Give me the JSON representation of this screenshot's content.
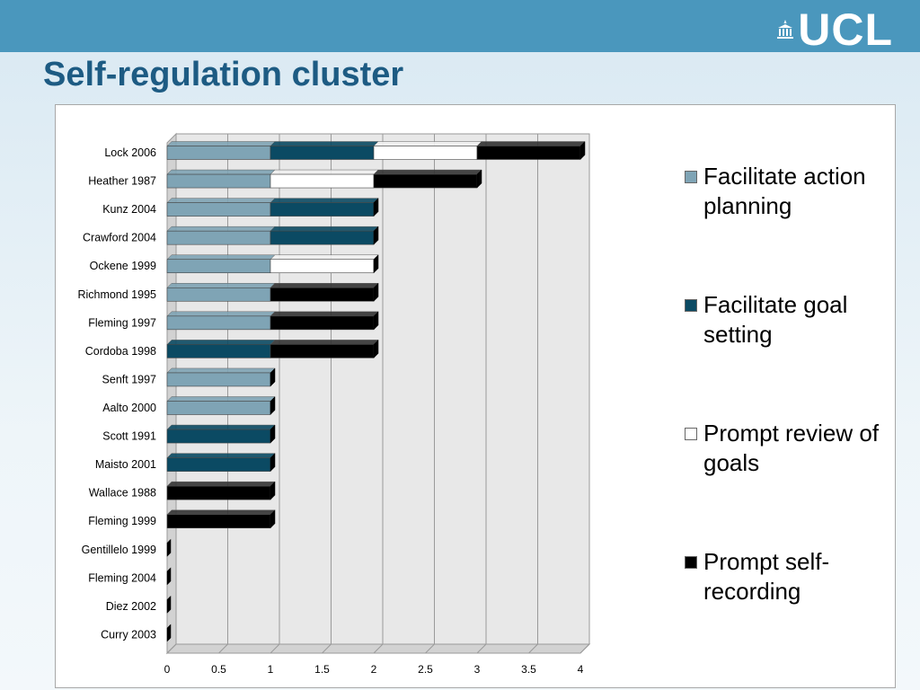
{
  "slide": {
    "title": "Self-regulation cluster",
    "logo_text": "UCL"
  },
  "colors": {
    "header_bar": "#4a97bd",
    "title": "#1d5b83",
    "facilitate_action_planning": "#7fa4b5",
    "facilitate_goal_setting": "#0b4a63",
    "prompt_review_of_goals": "#ffffff",
    "prompt_self_recording": "#000000"
  },
  "chart_data": {
    "type": "bar",
    "orientation": "horizontal",
    "stacked": true,
    "three_d": true,
    "title": "",
    "xlabel": "",
    "ylabel": "",
    "xlim": [
      0,
      4
    ],
    "xticks": [
      "0",
      "0.5",
      "1",
      "1.5",
      "2",
      "2.5",
      "3",
      "3.5",
      "4"
    ],
    "grid": true,
    "legend_position": "right",
    "categories": [
      "Lock 2006",
      "Heather 1987",
      "Kunz 2004",
      "Crawford 2004",
      "Ockene 1999",
      "Richmond 1995",
      "Fleming 1997",
      "Cordoba 1998",
      "Senft 1997",
      "Aalto 2000",
      "Scott 1991",
      "Maisto 2001",
      "Wallace 1988",
      "Fleming 1999",
      "Gentillelo 1999",
      "Fleming 2004",
      "Diez 2002",
      "Curry 2003"
    ],
    "series": [
      {
        "name": "Facilitate action planning",
        "color": "#7fa4b5",
        "values": [
          1,
          1,
          1,
          1,
          1,
          1,
          1,
          0,
          1,
          1,
          0,
          0,
          0,
          0,
          0,
          0,
          0,
          0
        ]
      },
      {
        "name": "Facilitate goal setting",
        "color": "#0b4a63",
        "values": [
          1,
          0,
          1,
          1,
          0,
          0,
          0,
          1,
          0,
          0,
          1,
          1,
          0,
          0,
          0,
          0,
          0,
          0
        ]
      },
      {
        "name": "Prompt review of goals",
        "color": "#ffffff",
        "values": [
          1,
          1,
          0,
          0,
          1,
          0,
          0,
          0,
          0,
          0,
          0,
          0,
          0,
          0,
          0,
          0,
          0,
          0
        ]
      },
      {
        "name": "Prompt self-recording",
        "color": "#000000",
        "values": [
          1,
          1,
          0,
          0,
          0,
          1,
          1,
          1,
          0,
          0,
          0,
          0,
          1,
          1,
          0,
          0,
          0,
          0
        ]
      }
    ]
  }
}
